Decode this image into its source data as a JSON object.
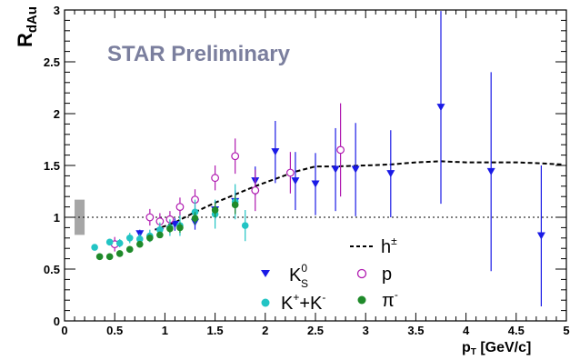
{
  "chart_data": {
    "type": "scatter",
    "title": "",
    "xlabel": "p",
    "xlabel_sub": "T",
    "xlabel_unit": " [GeV/c]",
    "ylabel": "R",
    "ylabel_sub": "dAu",
    "xlim": [
      0,
      5
    ],
    "ylim": [
      0,
      3
    ],
    "x_ticks": [
      "0",
      "0.5",
      "1",
      "1.5",
      "2",
      "2.5",
      "3",
      "3.5",
      "4",
      "4.5",
      "5"
    ],
    "y_ticks": [
      "0",
      "0.5",
      "1",
      "1.5",
      "2",
      "2.5",
      "3"
    ],
    "reference_line": 1.0,
    "normalization_uncertainty": [
      0.83,
      1.17
    ],
    "watermark": "STAR Preliminary",
    "legend_position": "bottom-right",
    "colors": {
      "k0s": "#1a1ae6",
      "proton": "#b01ab0",
      "kaon": "#22c4c4",
      "pion": "#1f8a2a",
      "hadron": "#000000",
      "watermark": "#7b7f9e",
      "norm_box": "#a6a6a6"
    },
    "series": [
      {
        "key": "k0s",
        "name": "K",
        "name_sup": "0",
        "name_sub": "S",
        "marker": "triangle-down",
        "points": [
          {
            "x": 0.75,
            "y": 0.84,
            "err": 0.04
          },
          {
            "x": 0.95,
            "y": 0.86,
            "err": 0.05
          },
          {
            "x": 1.1,
            "y": 0.93,
            "err": 0.06
          },
          {
            "x": 1.3,
            "y": 0.95,
            "err": 0.07
          },
          {
            "x": 1.5,
            "y": 1.07,
            "err": 0.09
          },
          {
            "x": 1.7,
            "y": 1.15,
            "err": 0.11
          },
          {
            "x": 1.9,
            "y": 1.35,
            "err": 0.14
          },
          {
            "x": 2.1,
            "y": 1.63,
            "err": 0.3
          },
          {
            "x": 2.3,
            "y": 1.35,
            "err": 0.28
          },
          {
            "x": 2.5,
            "y": 1.32,
            "err": 0.3
          },
          {
            "x": 2.7,
            "y": 1.46,
            "err": 0.4
          },
          {
            "x": 2.9,
            "y": 1.46,
            "err": 0.45
          },
          {
            "x": 3.25,
            "y": 1.42,
            "err": 0.42
          },
          {
            "x": 3.75,
            "y": 2.06,
            "err": 0.93
          },
          {
            "x": 4.25,
            "y": 1.44,
            "err": 0.96
          },
          {
            "x": 4.75,
            "y": 0.82,
            "err": 0.68
          }
        ]
      },
      {
        "key": "proton",
        "name": "p",
        "marker": "circle-open",
        "points": [
          {
            "x": 0.5,
            "y": 0.74,
            "err": 0.07
          },
          {
            "x": 0.85,
            "y": 1.0,
            "err": 0.08
          },
          {
            "x": 0.95,
            "y": 0.96,
            "err": 0.08
          },
          {
            "x": 1.05,
            "y": 0.98,
            "err": 0.08
          },
          {
            "x": 1.15,
            "y": 1.1,
            "err": 0.09
          },
          {
            "x": 1.3,
            "y": 1.17,
            "err": 0.1
          },
          {
            "x": 1.5,
            "y": 1.38,
            "err": 0.12
          },
          {
            "x": 1.7,
            "y": 1.59,
            "err": 0.17
          },
          {
            "x": 1.9,
            "y": 1.26,
            "err": 0.2
          },
          {
            "x": 2.25,
            "y": 1.43,
            "err": 0.2
          },
          {
            "x": 2.75,
            "y": 1.65,
            "err": 0.45
          }
        ]
      },
      {
        "key": "kaon",
        "name": "K",
        "name_sup1": "+",
        "name_mid": "+K",
        "name_sup2": "-",
        "marker": "circle-filled",
        "points": [
          {
            "x": 0.3,
            "y": 0.71,
            "err": 0.02
          },
          {
            "x": 0.45,
            "y": 0.76,
            "err": 0.03
          },
          {
            "x": 0.55,
            "y": 0.75,
            "err": 0.04
          },
          {
            "x": 0.65,
            "y": 0.8,
            "err": 0.05
          },
          {
            "x": 0.75,
            "y": 0.79,
            "err": 0.05
          },
          {
            "x": 0.85,
            "y": 0.82,
            "err": 0.06
          },
          {
            "x": 0.95,
            "y": 0.88,
            "err": 0.07
          },
          {
            "x": 1.05,
            "y": 0.9,
            "err": 0.08
          },
          {
            "x": 1.15,
            "y": 0.92,
            "err": 0.1
          },
          {
            "x": 1.3,
            "y": 1.05,
            "err": 0.12
          },
          {
            "x": 1.5,
            "y": 1.03,
            "err": 0.14
          },
          {
            "x": 1.7,
            "y": 1.15,
            "err": 0.17
          },
          {
            "x": 1.8,
            "y": 0.92,
            "err": 0.15
          }
        ]
      },
      {
        "key": "pion",
        "name": "π",
        "name_sup": "-",
        "marker": "circle-filled",
        "points": [
          {
            "x": 0.35,
            "y": 0.62,
            "err": 0.02
          },
          {
            "x": 0.45,
            "y": 0.62,
            "err": 0.02
          },
          {
            "x": 0.55,
            "y": 0.65,
            "err": 0.02
          },
          {
            "x": 0.65,
            "y": 0.69,
            "err": 0.02
          },
          {
            "x": 0.75,
            "y": 0.74,
            "err": 0.03
          },
          {
            "x": 0.85,
            "y": 0.8,
            "err": 0.03
          },
          {
            "x": 0.95,
            "y": 0.83,
            "err": 0.03
          },
          {
            "x": 1.05,
            "y": 0.89,
            "err": 0.04
          },
          {
            "x": 1.15,
            "y": 0.9,
            "err": 0.05
          },
          {
            "x": 1.3,
            "y": 0.99,
            "err": 0.06
          },
          {
            "x": 1.5,
            "y": 1.07,
            "err": 0.07
          },
          {
            "x": 1.7,
            "y": 1.12,
            "err": 0.09
          }
        ]
      },
      {
        "key": "hadron",
        "name": "h",
        "name_sup": "±",
        "marker": "dashed-line",
        "points": [
          {
            "x": 0.9,
            "y": 0.88
          },
          {
            "x": 1.1,
            "y": 0.95
          },
          {
            "x": 1.3,
            "y": 1.05
          },
          {
            "x": 1.5,
            "y": 1.14
          },
          {
            "x": 1.7,
            "y": 1.22
          },
          {
            "x": 1.9,
            "y": 1.3
          },
          {
            "x": 2.1,
            "y": 1.37
          },
          {
            "x": 2.3,
            "y": 1.44
          },
          {
            "x": 2.5,
            "y": 1.49
          },
          {
            "x": 2.7,
            "y": 1.49
          },
          {
            "x": 3.0,
            "y": 1.5
          },
          {
            "x": 3.25,
            "y": 1.51
          },
          {
            "x": 3.5,
            "y": 1.53
          },
          {
            "x": 3.75,
            "y": 1.54
          },
          {
            "x": 4.0,
            "y": 1.53
          },
          {
            "x": 4.25,
            "y": 1.53
          },
          {
            "x": 4.5,
            "y": 1.53
          },
          {
            "x": 4.75,
            "y": 1.52
          },
          {
            "x": 4.95,
            "y": 1.51
          }
        ]
      }
    ]
  }
}
